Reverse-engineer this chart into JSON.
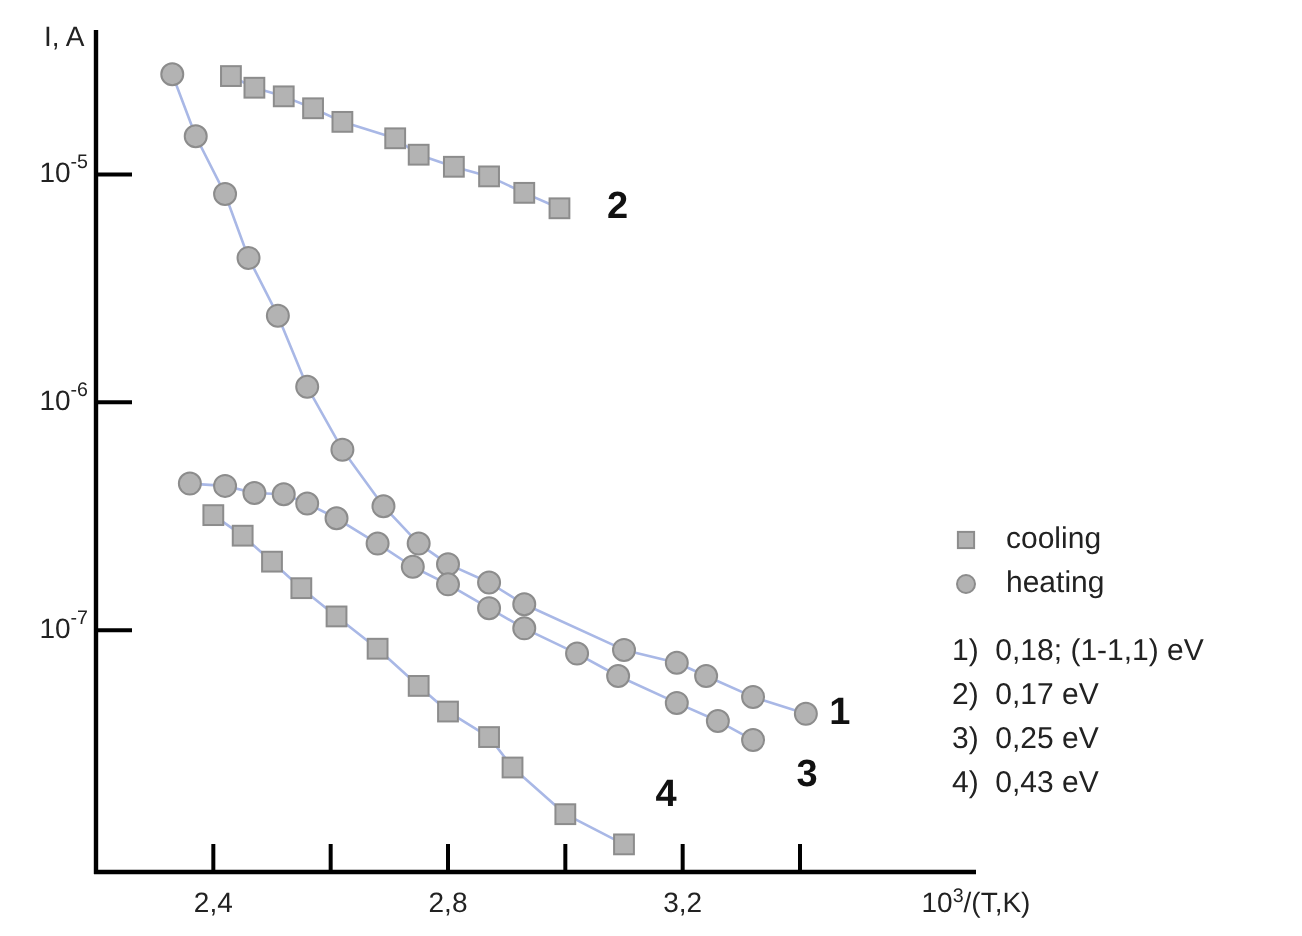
{
  "chart_data": {
    "type": "line",
    "xlabel": "10$^{3}$/(T,K)",
    "ylabel": "I, A",
    "log": "y",
    "xlim": [
      2.2,
      3.7
    ],
    "ylim": [
      8.7e-09,
      4.3e-05
    ],
    "xticks": [
      {
        "value": 2.4,
        "label": "2,4"
      },
      {
        "value": 2.6,
        "label": null
      },
      {
        "value": 2.8,
        "label": "2,8"
      },
      {
        "value": 3.0,
        "label": null
      },
      {
        "value": 3.2,
        "label": "3,2"
      },
      {
        "value": 3.4,
        "label": null
      }
    ],
    "yticks": [
      {
        "value": 1e-07,
        "label": "10$^{-7}$"
      },
      {
        "value": 1e-06,
        "label": "10$^{-6}$"
      },
      {
        "value": 1e-05,
        "label": "10$^{-5}$"
      }
    ],
    "legend": "right",
    "line_style": "solid",
    "series": [
      {
        "name": "heating",
        "marker": "circle",
        "color": "#b3b3b3",
        "x": [
          2.33,
          2.37,
          2.42,
          2.46,
          2.51,
          2.56,
          2.62,
          2.69,
          2.75,
          2.8,
          2.87,
          2.93,
          3.1,
          3.19,
          3.24,
          3.32,
          3.41
        ],
        "values": [
          2.75e-05,
          1.47e-05,
          8.2e-06,
          4.3e-06,
          2.4e-06,
          1.17e-06,
          6.2e-07,
          3.5e-07,
          2.4e-07,
          1.95e-07,
          1.62e-07,
          1.3e-07,
          8.2e-08,
          7.2e-08,
          6.3e-08,
          5.1e-08,
          4.3e-08
        ]
      },
      {
        "name": "cooling",
        "marker": "square",
        "color": "#b3b3b3",
        "x": [
          2.43,
          2.47,
          2.52,
          2.57,
          2.62,
          2.71,
          2.75,
          2.81,
          2.87,
          2.93,
          2.99
        ],
        "values": [
          2.7e-05,
          2.4e-05,
          2.2e-05,
          1.95e-05,
          1.7e-05,
          1.44e-05,
          1.22e-05,
          1.08e-05,
          9.8e-06,
          8.3e-06,
          7.1e-06
        ]
      },
      {
        "marker": "circle",
        "color": "#b3b3b3",
        "x": [
          2.36,
          2.42,
          2.47,
          2.52,
          2.56,
          2.61,
          2.68,
          2.74,
          2.8,
          2.87,
          2.93,
          3.02,
          3.09,
          3.19,
          3.26,
          3.32
        ],
        "values": [
          4.4e-07,
          4.3e-07,
          4e-07,
          3.95e-07,
          3.6e-07,
          3.1e-07,
          2.4e-07,
          1.9e-07,
          1.59e-07,
          1.25e-07,
          1.02e-07,
          7.9e-08,
          6.3e-08,
          4.8e-08,
          4e-08,
          3.3e-08
        ]
      },
      {
        "marker": "square",
        "color": "#b3b3b3",
        "x": [
          2.4,
          2.45,
          2.5,
          2.55,
          2.61,
          2.68,
          2.75,
          2.8,
          2.87,
          2.91,
          3.0,
          3.1
        ],
        "values": [
          3.2e-07,
          2.6e-07,
          2e-07,
          1.53e-07,
          1.15e-07,
          8.3e-08,
          5.7e-08,
          4.4e-08,
          3.4e-08,
          2.5e-08,
          1.56e-08,
          1.15e-08
        ]
      }
    ],
    "annotations": [
      {
        "text": "1",
        "x": 3.41,
        "y": 4.3e-08
      },
      {
        "text": "2",
        "x": 2.99,
        "y": 7.1e-06
      },
      {
        "text": "3",
        "x": 3.32,
        "y": 3.3e-08
      },
      {
        "text": "4",
        "x": 3.1,
        "y": 1.15e-08
      },
      "1)  0,18; (1-1,1) eV",
      "2)  0,17 eV",
      "3)  0,25 eV",
      "4)  0,43 eV"
    ]
  }
}
